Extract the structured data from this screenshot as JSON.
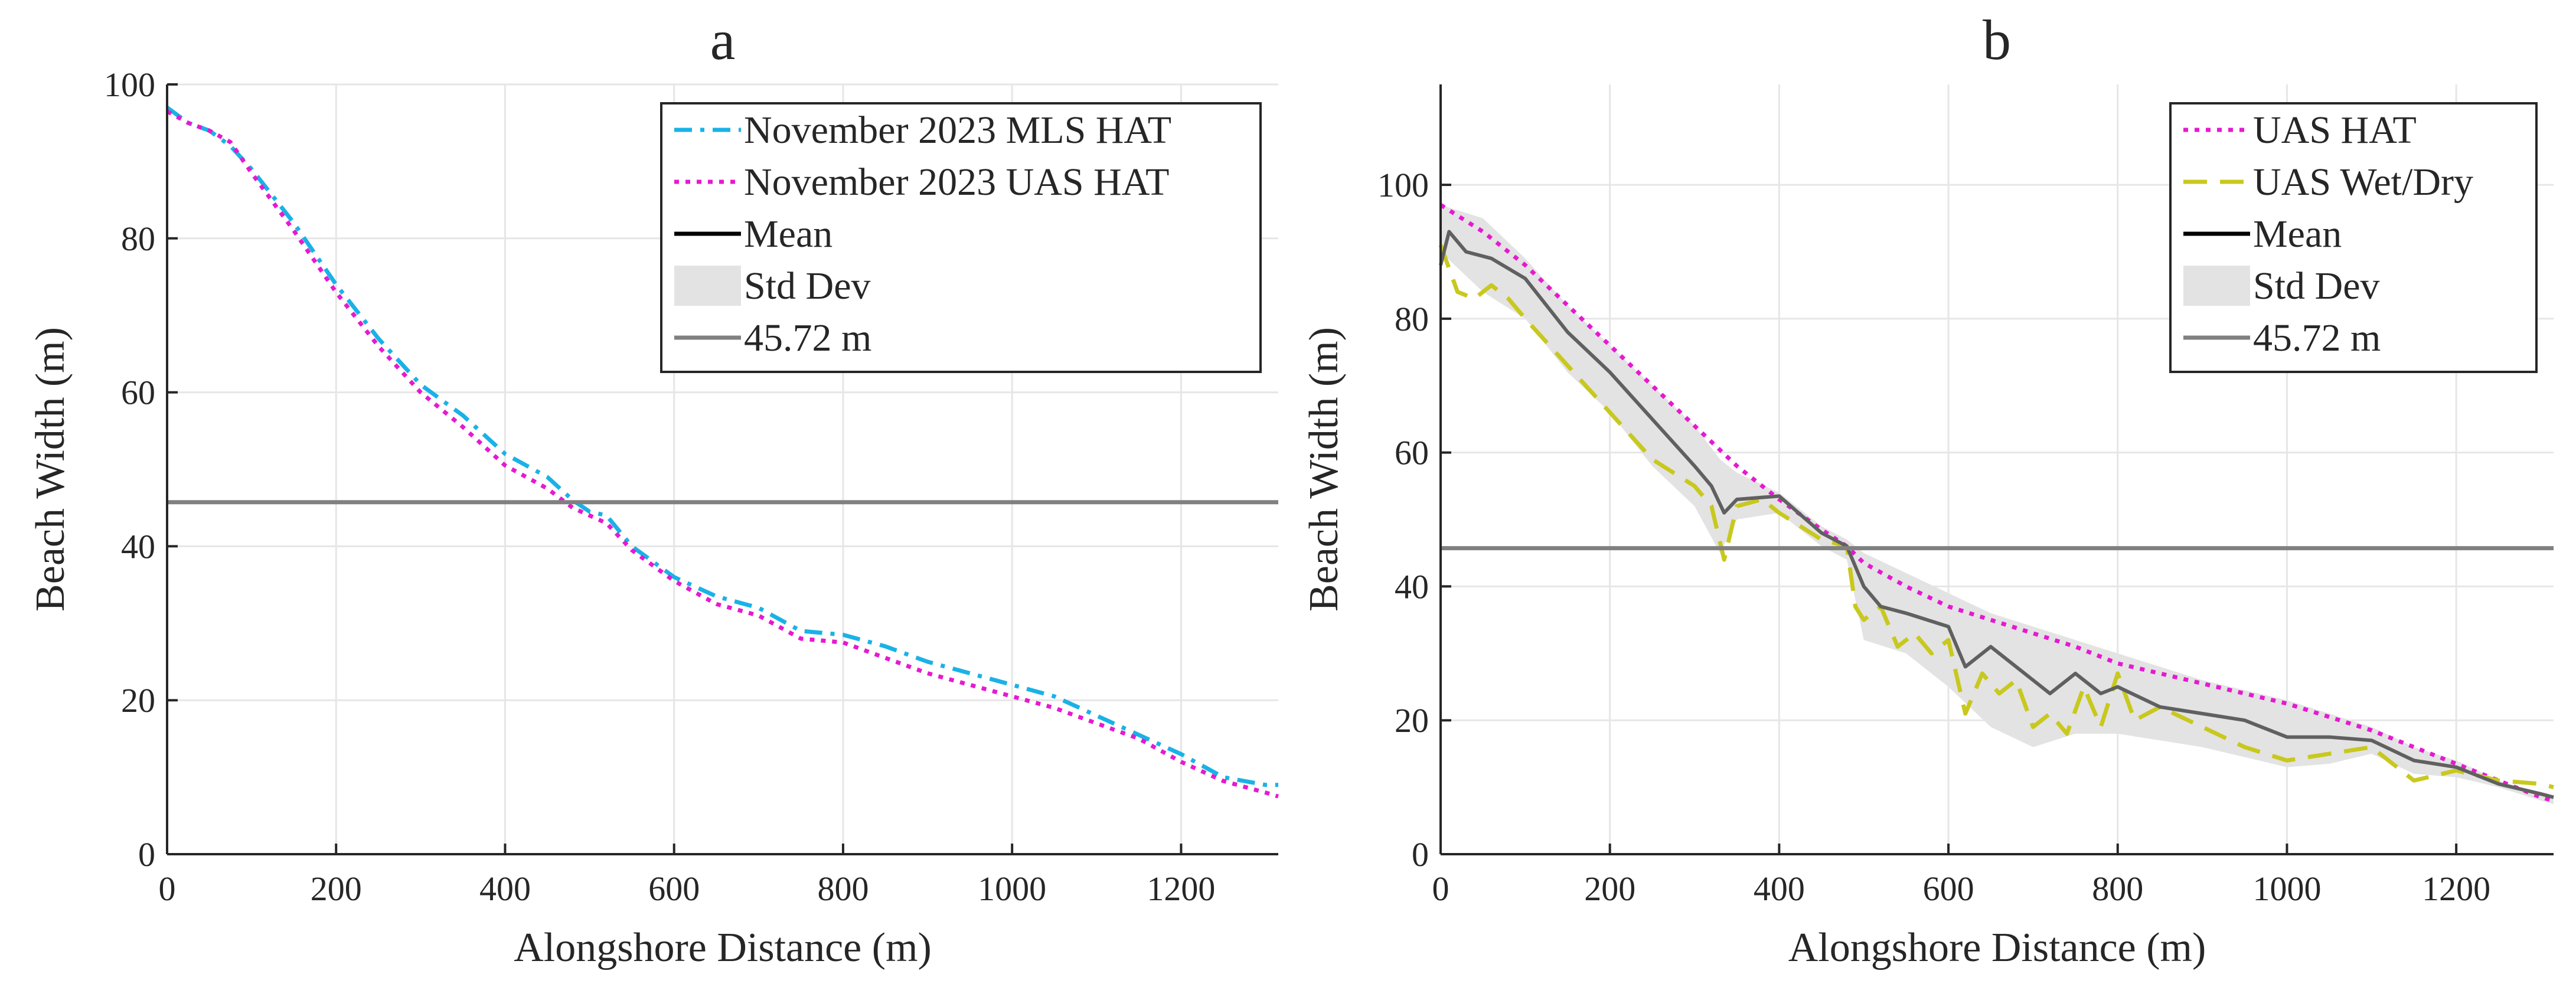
{
  "chart_data": [
    {
      "type": "line",
      "title": "a",
      "xlabel": "Alongshore Distance (m)",
      "ylabel": "Beach Width (m)",
      "xlim": [
        0,
        1315
      ],
      "ylim": [
        0,
        100
      ],
      "xticks": [
        0,
        200,
        400,
        600,
        800,
        1000,
        1200
      ],
      "yticks": [
        0,
        20,
        40,
        60,
        80,
        100
      ],
      "grid": true,
      "legend_position": "top-right",
      "series": [
        {
          "name": "November 2023 MLS HAT",
          "color": "#1ab2e6",
          "style": "dash-dot",
          "x": [
            0,
            25,
            50,
            75,
            100,
            150,
            200,
            250,
            300,
            350,
            400,
            450,
            480,
            500,
            520,
            550,
            600,
            650,
            700,
            750,
            800,
            850,
            900,
            950,
            1000,
            1050,
            1100,
            1150,
            1200,
            1250,
            1300,
            1315
          ],
          "y": [
            97,
            95,
            94,
            92,
            89,
            82,
            74,
            67,
            61,
            57,
            52,
            49,
            46,
            44.5,
            44,
            40,
            36,
            33.5,
            32,
            29,
            28.5,
            27,
            25,
            23.5,
            22,
            20.5,
            18,
            15.5,
            13,
            10,
            9,
            9
          ]
        },
        {
          "name": "November 2023 UAS HAT",
          "color": "#e619d1",
          "style": "dotted",
          "x": [
            0,
            25,
            50,
            75,
            100,
            150,
            200,
            250,
            300,
            350,
            400,
            450,
            480,
            500,
            520,
            550,
            600,
            650,
            700,
            750,
            800,
            850,
            900,
            950,
            1000,
            1050,
            1100,
            1150,
            1200,
            1250,
            1300,
            1315
          ],
          "y": [
            96.5,
            95,
            94,
            92.5,
            88.5,
            81,
            73,
            66,
            60,
            55.5,
            50.5,
            47.5,
            45,
            44,
            43,
            39.5,
            35.5,
            32.5,
            31,
            28,
            27.5,
            25.5,
            23.5,
            22,
            20.5,
            19,
            17,
            15,
            12,
            9.5,
            8,
            7.5
          ]
        },
        {
          "name": "45.72 m",
          "color": "#808080",
          "style": "solid",
          "x": [
            0,
            1315
          ],
          "y": [
            45.72,
            45.72
          ]
        }
      ],
      "legend": [
        "November 2023 MLS HAT",
        "November 2023 UAS HAT",
        "Mean",
        "Std Dev",
        "45.72 m"
      ]
    },
    {
      "type": "line",
      "title": "b",
      "xlabel": "Alongshore Distance (m)",
      "ylabel": "Beach Width (m)",
      "xlim": [
        0,
        1315
      ],
      "ylim": [
        0,
        115
      ],
      "xticks": [
        0,
        200,
        400,
        600,
        800,
        1000,
        1200
      ],
      "yticks": [
        0,
        20,
        40,
        60,
        80,
        100
      ],
      "grid": true,
      "legend_position": "top-right",
      "series": [
        {
          "name": "UAS HAT",
          "color": "#e619d1",
          "style": "dotted",
          "x": [
            0,
            50,
            100,
            150,
            200,
            250,
            300,
            350,
            400,
            450,
            480,
            500,
            550,
            600,
            650,
            700,
            750,
            800,
            850,
            900,
            950,
            1000,
            1050,
            1100,
            1150,
            1200,
            1250,
            1300,
            1315
          ],
          "y": [
            97,
            93,
            88,
            82,
            76,
            70,
            64,
            58,
            53,
            48.5,
            46,
            43.5,
            40,
            37,
            35,
            33,
            31,
            28.5,
            27,
            25.5,
            24,
            22.5,
            20.5,
            18.5,
            16,
            13.5,
            11,
            8.5,
            8
          ]
        },
        {
          "name": "UAS Wet/Dry",
          "color": "#c8c81e",
          "style": "dashed",
          "x": [
            0,
            20,
            40,
            60,
            80,
            100,
            150,
            200,
            250,
            300,
            320,
            335,
            350,
            380,
            400,
            450,
            480,
            490,
            500,
            520,
            540,
            560,
            580,
            600,
            620,
            640,
            660,
            680,
            700,
            720,
            740,
            760,
            780,
            800,
            820,
            850,
            900,
            950,
            1000,
            1050,
            1100,
            1150,
            1200,
            1250,
            1300,
            1315
          ],
          "y": [
            91,
            84,
            83,
            85,
            83,
            80,
            73,
            66,
            59,
            55,
            52,
            44,
            52,
            53,
            51,
            47,
            46,
            37,
            35,
            37,
            31,
            33,
            30,
            32,
            21,
            27,
            24,
            26,
            19,
            21,
            18,
            25,
            19,
            27,
            20,
            22,
            19,
            16,
            14,
            15,
            16,
            11,
            12.5,
            11,
            10.5,
            10
          ]
        },
        {
          "name": "Mean",
          "color": "#606060",
          "style": "solid",
          "x": [
            0,
            10,
            30,
            60,
            100,
            150,
            200,
            250,
            300,
            320,
            335,
            350,
            400,
            450,
            480,
            500,
            520,
            550,
            600,
            620,
            650,
            700,
            720,
            750,
            780,
            800,
            850,
            900,
            950,
            1000,
            1050,
            1100,
            1150,
            1200,
            1250,
            1300,
            1315
          ],
          "y": [
            88,
            93,
            90,
            89,
            86,
            78,
            72,
            65,
            58,
            55,
            51,
            53,
            53.5,
            48,
            46,
            40,
            37,
            36,
            34,
            28,
            31,
            26,
            24,
            27,
            24,
            25,
            22,
            21,
            20,
            17.5,
            17.5,
            17,
            14,
            13,
            10.5,
            9,
            8.5
          ]
        },
        {
          "name": "45.72 m",
          "color": "#808080",
          "style": "solid",
          "x": [
            0,
            1315
          ],
          "y": [
            45.72,
            45.72
          ]
        }
      ],
      "std_band": {
        "color": "#e3e3e3",
        "x": [
          0,
          50,
          100,
          150,
          200,
          250,
          300,
          330,
          350,
          400,
          450,
          480,
          500,
          550,
          600,
          650,
          700,
          750,
          800,
          850,
          900,
          950,
          1000,
          1050,
          1100,
          1150,
          1200,
          1250,
          1300,
          1315
        ],
        "upper": [
          97,
          95,
          89,
          82,
          76,
          70,
          64,
          59,
          57,
          54,
          49,
          47,
          45,
          42,
          39,
          36,
          34,
          32,
          30,
          28,
          26,
          24.5,
          23,
          21,
          19,
          16,
          14,
          11,
          9,
          8.5
        ],
        "lower": [
          90,
          84,
          80,
          72,
          66,
          58,
          52,
          45,
          50,
          51,
          46,
          44,
          32,
          30,
          25,
          19,
          16,
          18,
          18,
          17,
          16,
          14.5,
          13,
          13.5,
          15,
          12,
          11.5,
          10,
          8,
          7.5
        ]
      },
      "legend": [
        "UAS HAT",
        "UAS Wet/Dry",
        "Mean",
        "Std Dev",
        "45.72 m"
      ]
    }
  ]
}
